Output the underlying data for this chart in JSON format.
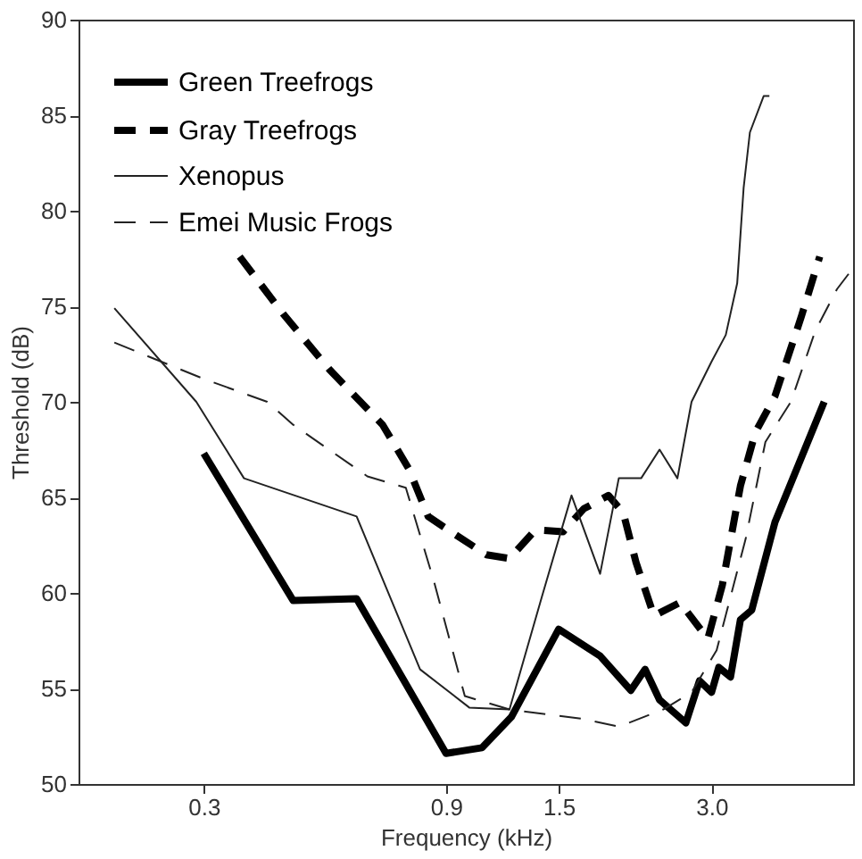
{
  "chart_data": {
    "type": "line",
    "xlabel": "Frequency (kHz)",
    "ylabel": "Threshold (dB)",
    "log": "x",
    "grid": false,
    "legend": "top left",
    "marker": "none",
    "xlim": [
      0.17,
      5.7
    ],
    "xticks": [
      0.3,
      0.9,
      1.5,
      {
        "value": 3,
        "label": "3.0"
      }
    ],
    "ylim": [
      50,
      90
    ],
    "yticks": [
      50,
      55,
      60,
      65,
      70,
      75,
      80,
      85,
      90
    ],
    "series": [
      {
        "name": "Green Treefrogs",
        "color": "#000000",
        "line_style": "solid",
        "x": [
          0.3,
          0.45,
          0.6,
          0.9,
          1.06,
          1.21,
          1.5,
          1.81,
          2.08,
          2.22,
          2.37,
          2.67,
          2.84,
          3.0,
          3.1,
          3.27,
          3.42,
          3.6,
          4.0,
          5.0
        ],
        "values": [
          67.3,
          59.6,
          59.7,
          51.6,
          51.9,
          53.5,
          58.1,
          56.7,
          54.9,
          56.0,
          54.4,
          53.2,
          55.4,
          54.8,
          56.1,
          55.6,
          58.6,
          59.1,
          63.7,
          70.0
        ]
      },
      {
        "name": "Gray Treefrogs",
        "color": "#000000",
        "line_style": "dashed",
        "x": [
          0.353,
          0.43,
          0.53,
          0.675,
          0.76,
          0.83,
          0.92,
          1.08,
          1.2,
          1.35,
          1.53,
          1.68,
          1.88,
          2.01,
          2.13,
          2.31,
          2.6,
          2.95,
          3.15,
          3.42,
          3.66,
          4.0,
          4.5,
          4.9
        ],
        "values": [
          77.6,
          74.6,
          71.7,
          68.8,
          66.5,
          64.0,
          63.2,
          62.0,
          61.8,
          63.3,
          63.2,
          64.4,
          65.1,
          64.2,
          61.6,
          58.8,
          59.5,
          57.6,
          60.4,
          65.6,
          68.4,
          70.3,
          74.4,
          77.6
        ]
      },
      {
        "name": "Xenopus",
        "color": "#222222",
        "line_style": "solid",
        "x": [
          0.2,
          0.29,
          0.36,
          0.6,
          0.8,
          1.0,
          1.2,
          1.39,
          1.59,
          1.81,
          1.97,
          2.18,
          2.37,
          2.57,
          2.74,
          3.0,
          3.2,
          3.37,
          3.47,
          3.57,
          3.8,
          3.9
        ],
        "values": [
          74.9,
          70.0,
          66.0,
          64.0,
          56.0,
          54.0,
          53.9,
          59.8,
          65.1,
          61.0,
          66.0,
          66.0,
          67.5,
          66.0,
          70.0,
          72.1,
          73.5,
          76.2,
          81.2,
          84.1,
          86.0,
          86.0
        ]
      },
      {
        "name": "Emei Music Frogs",
        "color": "#222222",
        "line_style": "dashed",
        "x": [
          0.2,
          0.3,
          0.4,
          0.45,
          0.63,
          0.75,
          0.85,
          0.98,
          1.2,
          1.68,
          1.97,
          2.41,
          2.74,
          3.07,
          3.5,
          3.83,
          4.3,
          4.8,
          5.3,
          5.7
        ],
        "values": [
          73.1,
          71.2,
          70.0,
          68.8,
          66.1,
          65.5,
          60.7,
          54.6,
          53.9,
          53.4,
          53.0,
          53.9,
          54.8,
          57.0,
          62.8,
          67.9,
          70.0,
          73.7,
          75.9,
          77.0
        ]
      }
    ]
  }
}
